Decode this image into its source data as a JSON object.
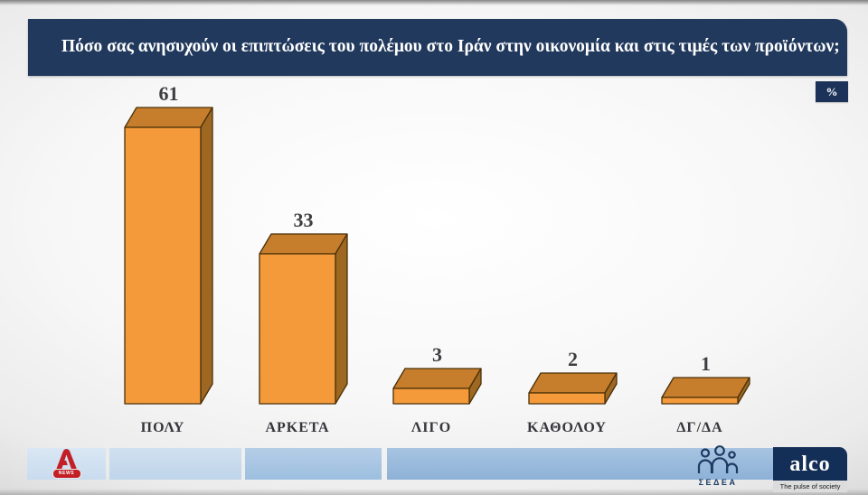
{
  "header": {
    "title": "Πόσο σας ανησυχούν οι επιπτώσεις του πολέμου στο Ιράν στην οικονομία και στις τιμές των προϊόντων;",
    "unit_badge": "%"
  },
  "chart_data": {
    "type": "bar",
    "title": "Πόσο σας ανησυχούν οι επιπτώσεις του πολέμου στο Ιράν στην οικονομία και στις τιμές των προϊόντων;",
    "categories": [
      "ΠΟΛΥ",
      "ΑΡΚΕΤΑ",
      "ΛΙΓΟ",
      "ΚΑΘΟΛΟΥ",
      "ΔΓ/ΔΑ"
    ],
    "values": [
      61,
      33,
      3,
      2,
      1
    ],
    "unit": "%",
    "ylim": [
      0,
      65
    ],
    "grid": false,
    "legend": false,
    "style": "3d-block-bars",
    "colors": {
      "front": "#f49a3b",
      "top": "#c67e2c",
      "side": "#9e6823",
      "outline": "#4a3008",
      "value_label": "#3e3e42",
      "category_label": "#35353b"
    }
  },
  "footer": {
    "alpha_logo": {
      "badge": "NEWS"
    },
    "sedea": {
      "label": "ΣΕΔΕΑ"
    },
    "alco": {
      "label": "alco",
      "tagline": "The pulse of society"
    }
  },
  "colors": {
    "title_bar_bg": "#21395d",
    "badge_bg": "#1c3258",
    "alpha_red": "#c22026",
    "footer_navy": "#132e57"
  }
}
